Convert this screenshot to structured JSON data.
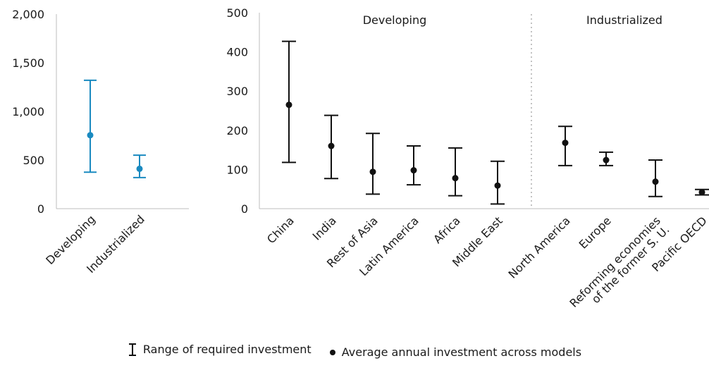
{
  "chart_data": [
    {
      "type": "scatter",
      "chart": "summary",
      "ylim": [
        0,
        2000
      ],
      "yticks": [
        "0",
        "500",
        "1,000",
        "1,500",
        "2,000"
      ],
      "color": "#1a8ac0",
      "categories": [
        "Developing",
        "Industrialized"
      ],
      "points": [
        {
          "label": "Developing",
          "low": 375,
          "high": 1320,
          "avg": 755
        },
        {
          "label": "Industrialized",
          "low": 320,
          "high": 550,
          "avg": 410
        }
      ]
    },
    {
      "type": "scatter",
      "chart": "regional",
      "ylim": [
        0,
        500
      ],
      "yticks": [
        "0",
        "100",
        "200",
        "300",
        "400",
        "500"
      ],
      "color": "#111111",
      "groups": [
        {
          "title": "Developing",
          "categories": [
            "China",
            "India",
            "Rest of Asia",
            "Latin America",
            "Africa",
            "Middle East"
          ]
        },
        {
          "title": "Industrialized",
          "categories": [
            "North America",
            "Europe",
            "Reforming economies of the former S. U.",
            "Pacific OECD"
          ]
        }
      ],
      "points": [
        {
          "label": "China",
          "low": 118,
          "high": 427,
          "avg": 265
        },
        {
          "label": "India",
          "low": 77,
          "high": 238,
          "avg": 160
        },
        {
          "label": "Rest of Asia",
          "low": 37,
          "high": 192,
          "avg": 94
        },
        {
          "label": "Latin America",
          "low": 61,
          "high": 160,
          "avg": 98
        },
        {
          "label": "Africa",
          "low": 33,
          "high": 155,
          "avg": 78
        },
        {
          "label": "Middle East",
          "low": 12,
          "high": 121,
          "avg": 59
        },
        {
          "label": "North America",
          "low": 110,
          "high": 210,
          "avg": 168
        },
        {
          "label": "Europe",
          "low": 110,
          "high": 144,
          "avg": 124
        },
        {
          "label": "Reforming economies of the former S. U.",
          "low": 31,
          "high": 124,
          "avg": 69
        },
        {
          "label": "Pacific OECD",
          "low": 35,
          "high": 49,
          "avg": 42
        }
      ],
      "category_lines": [
        [
          "China"
        ],
        [
          "India"
        ],
        [
          "Rest of Asia"
        ],
        [
          "Latin America"
        ],
        [
          "Africa"
        ],
        [
          "Middle East"
        ],
        [
          "North America"
        ],
        [
          "Europe"
        ],
        [
          "Reforming economies",
          "of the former S. U."
        ],
        [
          "Pacific OECD"
        ]
      ]
    }
  ],
  "legend": {
    "range_label": "Range of required investment",
    "avg_label": "Average annual investment across models"
  }
}
